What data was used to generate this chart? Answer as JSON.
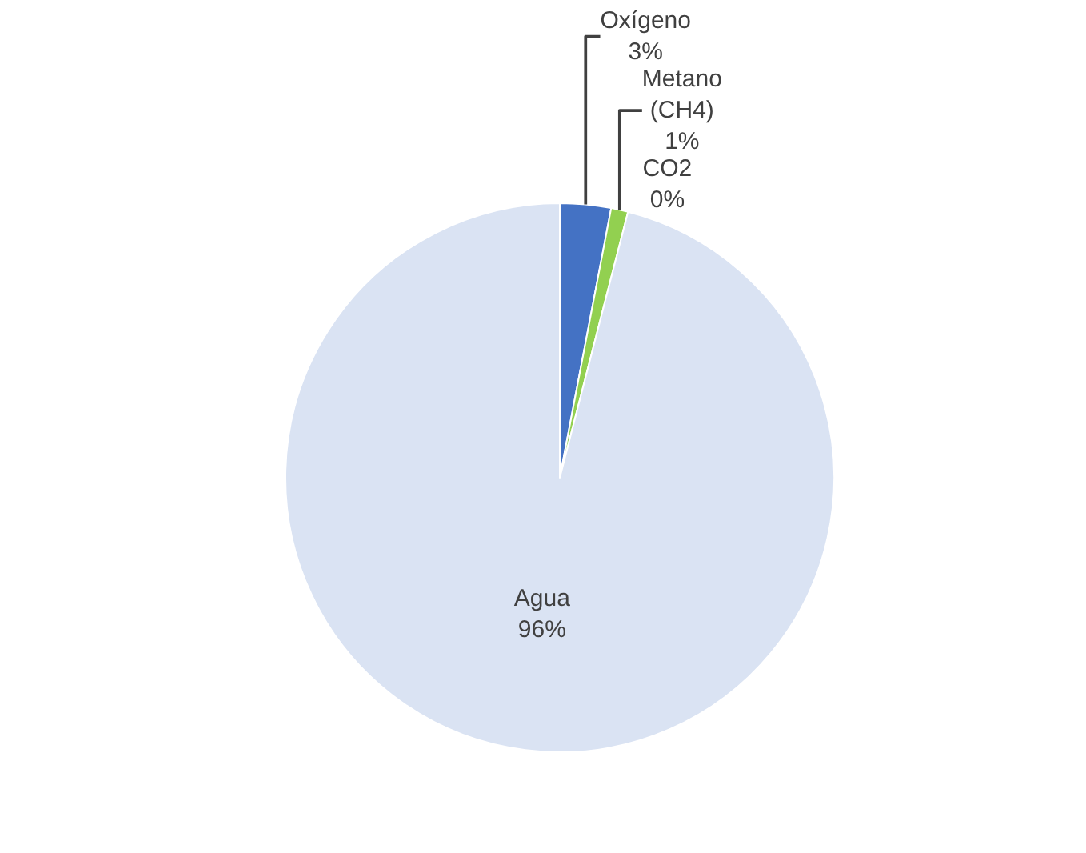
{
  "chart_data": {
    "type": "pie",
    "categories": [
      "Oxígeno",
      "Metano (CH4)",
      "CO2",
      "Agua"
    ],
    "values": [
      3,
      1,
      0,
      96
    ],
    "value_labels": [
      "3%",
      "1%",
      "0%",
      "96%"
    ],
    "colors": [
      "#4472c4",
      "#92d050",
      "#ed7d31",
      "#dae3f3"
    ],
    "legend": false
  }
}
